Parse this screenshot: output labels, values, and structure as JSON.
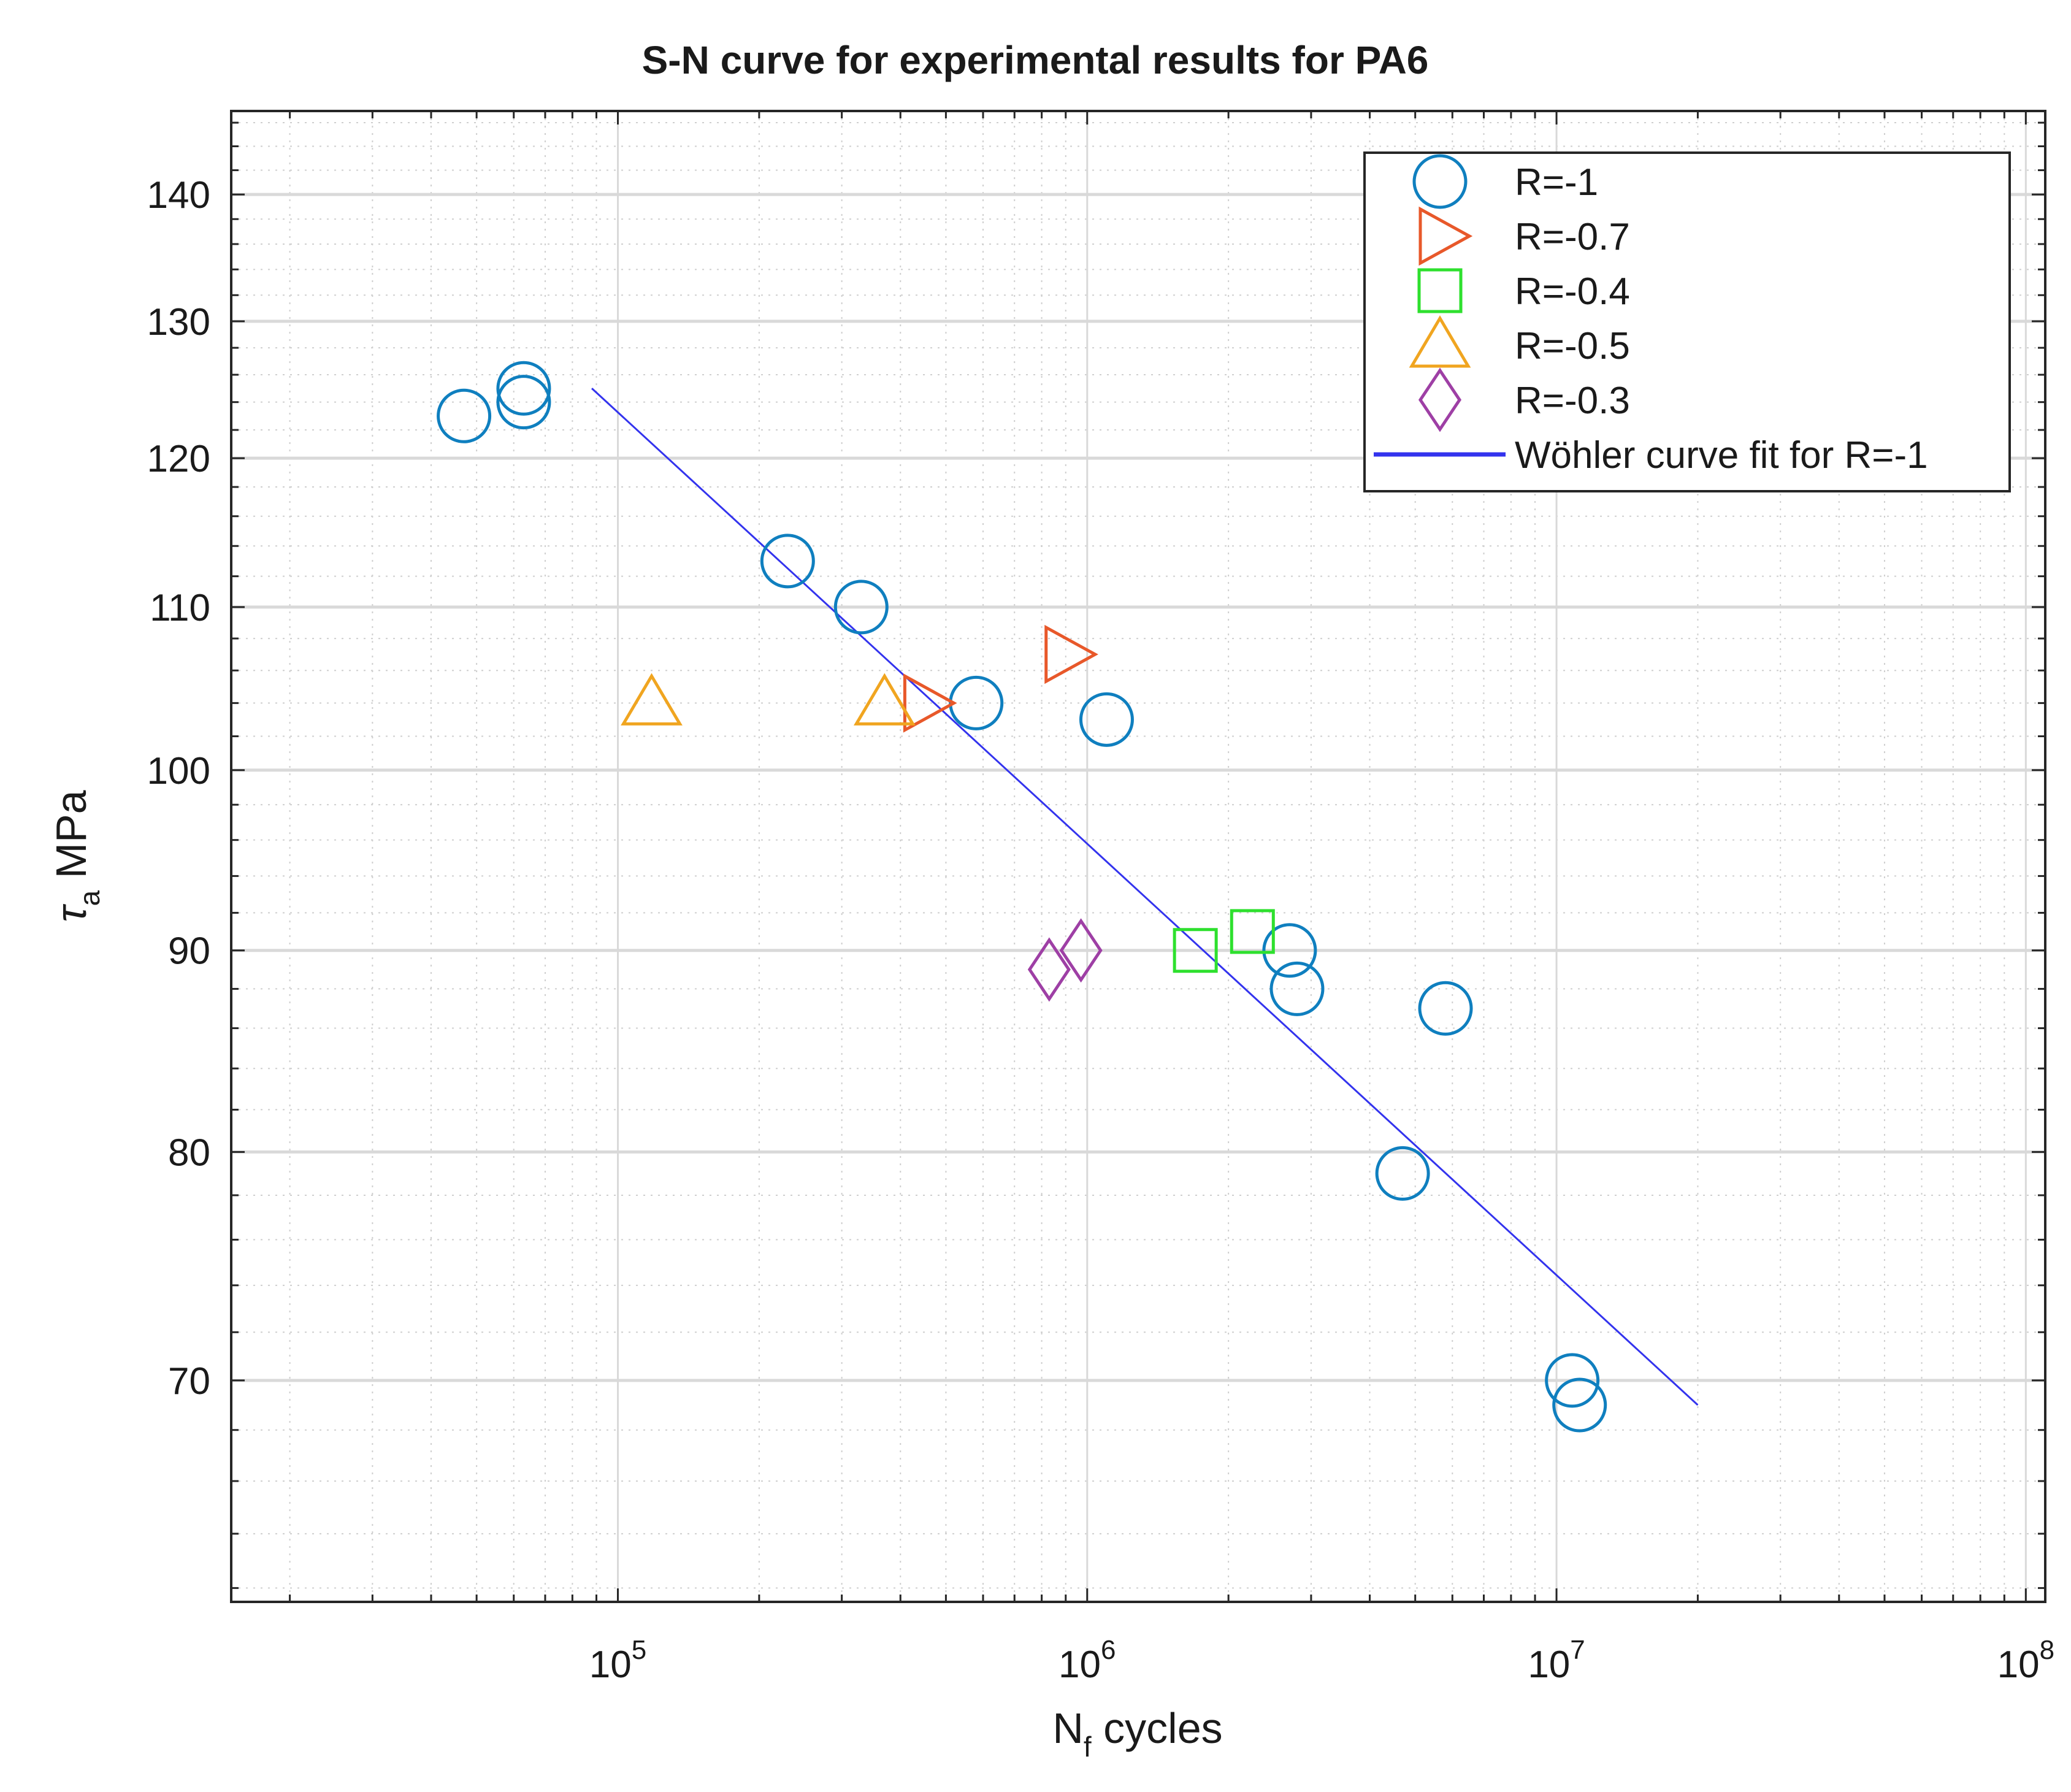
{
  "chart_data": {
    "type": "scatter",
    "title": "S-N curve for experimental results for PA6",
    "xlabel": {
      "base": "N",
      "sub": "f",
      "rest": " cycles"
    },
    "ylabel": {
      "symbol": "τ",
      "sub": "a",
      "rest": " MPa"
    },
    "xscale": "log",
    "yscale": "log",
    "xlim": [
      15000,
      110000000
    ],
    "ylim": [
      61.5,
      147
    ],
    "grid": true,
    "legend_position": "top-right",
    "x_ticks": [
      {
        "value": 100000,
        "base": "10",
        "exp": "5"
      },
      {
        "value": 1000000,
        "base": "10",
        "exp": "6"
      },
      {
        "value": 10000000,
        "base": "10",
        "exp": "7"
      },
      {
        "value": 100000000,
        "base": "10",
        "exp": "8"
      }
    ],
    "y_ticks": [
      {
        "value": 70,
        "label": "70"
      },
      {
        "value": 80,
        "label": "80"
      },
      {
        "value": 90,
        "label": "90"
      },
      {
        "value": 100,
        "label": "100"
      },
      {
        "value": 110,
        "label": "110"
      },
      {
        "value": 120,
        "label": "120"
      },
      {
        "value": 130,
        "label": "130"
      },
      {
        "value": 140,
        "label": "140"
      }
    ],
    "series": [
      {
        "name": "R=-1",
        "marker": "circle",
        "color": "#0f7fbf",
        "points": [
          [
            47000,
            123
          ],
          [
            63000,
            125
          ],
          [
            63000,
            124
          ],
          [
            230000,
            113
          ],
          [
            330000,
            110
          ],
          [
            580000,
            104
          ],
          [
            1100000,
            103
          ],
          [
            2700000,
            90
          ],
          [
            2800000,
            88
          ],
          [
            4700000,
            79
          ],
          [
            5800000,
            87
          ],
          [
            10800000,
            70
          ],
          [
            11200000,
            69
          ]
        ]
      },
      {
        "name": "R=-0.7",
        "marker": "triangle-right",
        "color": "#e8582a",
        "points": [
          [
            450000,
            104
          ],
          [
            900000,
            107
          ]
        ]
      },
      {
        "name": "R=-0.4",
        "marker": "square",
        "color": "#2ee02e",
        "points": [
          [
            1700000,
            90
          ],
          [
            2250000,
            91
          ]
        ]
      },
      {
        "name": "R=-0.5",
        "marker": "triangle-up",
        "color": "#f0a520",
        "points": [
          [
            118000,
            104
          ],
          [
            370000,
            104
          ]
        ]
      },
      {
        "name": "R=-0.3",
        "marker": "diamond",
        "color": "#9e3fa5",
        "points": [
          [
            830000,
            89
          ],
          [
            970000,
            90
          ]
        ]
      },
      {
        "name": "Wöhler curve fit for R=-1",
        "marker": "line",
        "color": "#3333ee",
        "points": [
          [
            88000,
            125
          ],
          [
            20000000,
            69
          ]
        ]
      }
    ]
  }
}
